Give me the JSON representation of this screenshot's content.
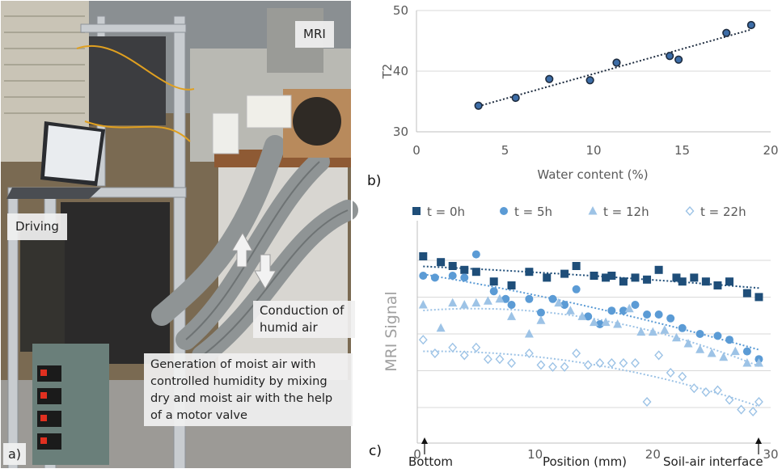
{
  "photo": {
    "label_mri": "MRI",
    "label_driving": "Driving",
    "label_conduction": "Conduction of humid air",
    "label_generation": "Generation of moist air with controlled humidity by mixing dry and moist air with the help of a motor valve",
    "panel_label": "a)"
  },
  "chart_data": [
    {
      "panel": "b)",
      "type": "scatter",
      "xlabel": "Water content (%)",
      "ylabel": "T2",
      "xlim": [
        0,
        20
      ],
      "ylim": [
        30,
        50
      ],
      "xticks": [
        "0",
        "5",
        "10",
        "15",
        "20"
      ],
      "yticks": [
        "30",
        "40",
        "50"
      ],
      "grid": "horizontal",
      "trendline": "linear, dotted",
      "x": [
        3.5,
        5.6,
        7.5,
        9.8,
        11.3,
        14.3,
        14.8,
        17.5,
        18.9
      ],
      "y": [
        34.3,
        35.6,
        38.7,
        38.5,
        41.4,
        42.5,
        41.9,
        46.3,
        47.6
      ],
      "colors": {
        "marker": "#3d6da7",
        "edge": "#1f2d40",
        "trend": "#1f2d40"
      }
    },
    {
      "panel": "c)",
      "type": "scatter",
      "xlabel": "Position (mm)",
      "ylabel": "MRI Signal",
      "xlim": [
        0,
        30
      ],
      "ylim": [
        0,
        100
      ],
      "xticks": [
        "0",
        "10",
        "20",
        "30"
      ],
      "grid": "horizontal",
      "annotations": {
        "left": "Bottom",
        "right": "Soil-air interface"
      },
      "legend_position": "top",
      "series": [
        {
          "name": "t = 0h",
          "marker": "square",
          "color": "#1f4e79",
          "x": [
            0.5,
            2,
            3,
            4,
            5,
            6.5,
            8,
            9.5,
            11,
            12.5,
            13.5,
            15,
            16,
            16.5,
            17.5,
            18.5,
            19.5,
            20.5,
            22,
            22.5,
            23.5,
            24.5,
            25.5,
            26.5,
            28,
            29
          ],
          "y": [
            95,
            92,
            90,
            88,
            87,
            82,
            80,
            87,
            84,
            86,
            90,
            85,
            84,
            85,
            82,
            84,
            83,
            88,
            84,
            82,
            84,
            82,
            80,
            82,
            76,
            74
          ]
        },
        {
          "name": "t = 5h",
          "marker": "circle",
          "color": "#5b9bd5",
          "x": [
            0.5,
            1.5,
            3,
            4,
            5,
            6.5,
            7.5,
            8,
            9.5,
            10.5,
            11.5,
            12.5,
            13.5,
            14.5,
            15.5,
            16.5,
            17.5,
            18.5,
            19.5,
            20.5,
            21.5,
            22.5,
            24,
            25.5,
            26.5,
            28,
            29
          ],
          "y": [
            85,
            84,
            85,
            84,
            96,
            77,
            73,
            70,
            73,
            66,
            73,
            70,
            78,
            64,
            60,
            67,
            67,
            70,
            65,
            65,
            63,
            58,
            55,
            54,
            52,
            46,
            42
          ]
        },
        {
          "name": "t = 12h",
          "marker": "triangle",
          "color": "#9dc3e6",
          "x": [
            0.5,
            2,
            3,
            4,
            5,
            6,
            7,
            8,
            9.5,
            10.5,
            12,
            13,
            14,
            15,
            16,
            17,
            18,
            19,
            20,
            21,
            22,
            23,
            24,
            25,
            26,
            27,
            28,
            29
          ],
          "y": [
            70,
            58,
            71,
            70,
            71,
            72,
            73,
            64,
            55,
            62,
            71,
            67,
            64,
            61,
            61,
            60,
            68,
            56,
            56,
            57,
            53,
            50,
            47,
            45,
            43,
            46,
            40,
            40
          ]
        },
        {
          "name": "t = 22h",
          "marker": "diamond",
          "color": "#9dc3e6",
          "x": [
            0.5,
            1.5,
            3,
            4,
            5,
            6,
            7,
            8,
            9.5,
            10.5,
            11.5,
            12.5,
            13.5,
            14.5,
            15.5,
            16.5,
            17.5,
            18.5,
            19.5,
            20.5,
            21.5,
            22.5,
            23.5,
            24.5,
            25.5,
            26.5,
            27.5,
            28.5,
            29
          ],
          "y": [
            52,
            45,
            48,
            44,
            48,
            42,
            42,
            40,
            45,
            39,
            38,
            38,
            45,
            39,
            40,
            40,
            40,
            40,
            20,
            44,
            35,
            33,
            27,
            25,
            26,
            21,
            16,
            15,
            20
          ]
        }
      ]
    }
  ]
}
